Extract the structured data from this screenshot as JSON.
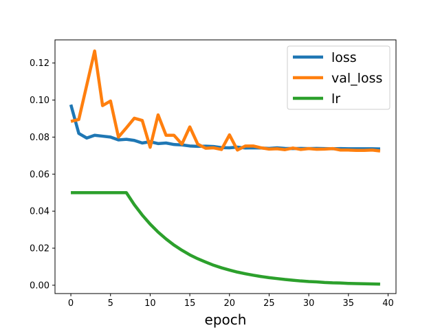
{
  "chart_data": {
    "type": "line",
    "title": "",
    "xlabel": "epoch",
    "ylabel": "",
    "xlim": [
      -2,
      41
    ],
    "ylim": [
      -0.0045,
      0.1325
    ],
    "xticks": [
      0,
      5,
      10,
      15,
      20,
      25,
      30,
      35,
      40
    ],
    "yticks": [
      0.0,
      0.02,
      0.04,
      0.06,
      0.08,
      0.1,
      0.12
    ],
    "ytick_labels": [
      "0.00",
      "0.02",
      "0.04",
      "0.06",
      "0.08",
      "0.10",
      "0.12"
    ],
    "grid": false,
    "legend": "top-right",
    "x": [
      0,
      1,
      2,
      3,
      4,
      5,
      6,
      7,
      8,
      9,
      10,
      11,
      12,
      13,
      14,
      15,
      16,
      17,
      18,
      19,
      20,
      21,
      22,
      23,
      24,
      25,
      26,
      27,
      28,
      29,
      30,
      31,
      32,
      33,
      34,
      35,
      36,
      37,
      38,
      39
    ],
    "series": [
      {
        "name": "loss",
        "color": "#1f77b4",
        "values": [
          0.0975,
          0.082,
          0.0795,
          0.081,
          0.0805,
          0.08,
          0.0785,
          0.0788,
          0.0782,
          0.0768,
          0.0775,
          0.0765,
          0.0768,
          0.076,
          0.0758,
          0.0752,
          0.075,
          0.0751,
          0.0749,
          0.0743,
          0.0742,
          0.0746,
          0.0741,
          0.0742,
          0.0741,
          0.0739,
          0.0742,
          0.0739,
          0.0738,
          0.0739,
          0.0738,
          0.0739,
          0.0738,
          0.0737,
          0.0738,
          0.0737,
          0.0737,
          0.0737,
          0.0737,
          0.0736
        ]
      },
      {
        "name": "val_loss",
        "color": "#ff7f0e",
        "values": [
          0.0885,
          0.0895,
          0.108,
          0.1265,
          0.097,
          0.0995,
          0.08,
          0.085,
          0.0902,
          0.089,
          0.0745,
          0.092,
          0.081,
          0.081,
          0.0762,
          0.0855,
          0.0762,
          0.074,
          0.0742,
          0.0733,
          0.0812,
          0.073,
          0.0752,
          0.0752,
          0.0742,
          0.0735,
          0.0737,
          0.0732,
          0.0741,
          0.0733,
          0.0738,
          0.0734,
          0.0735,
          0.0738,
          0.073,
          0.073,
          0.0728,
          0.0728,
          0.073,
          0.0725
        ]
      },
      {
        "name": "lr",
        "color": "#2ca02c",
        "values": [
          0.05,
          0.05,
          0.05,
          0.05,
          0.05,
          0.05,
          0.05,
          0.05,
          0.0435,
          0.0379,
          0.033,
          0.0287,
          0.025,
          0.0217,
          0.0189,
          0.0164,
          0.0143,
          0.0125,
          0.0108,
          0.0094,
          0.0082,
          0.0071,
          0.0062,
          0.0054,
          0.0047,
          0.0041,
          0.0036,
          0.0031,
          0.0027,
          0.0023,
          0.002,
          0.0018,
          0.0015,
          0.0013,
          0.0012,
          0.001,
          0.0009,
          0.0008,
          0.0007,
          0.0006
        ]
      }
    ]
  }
}
